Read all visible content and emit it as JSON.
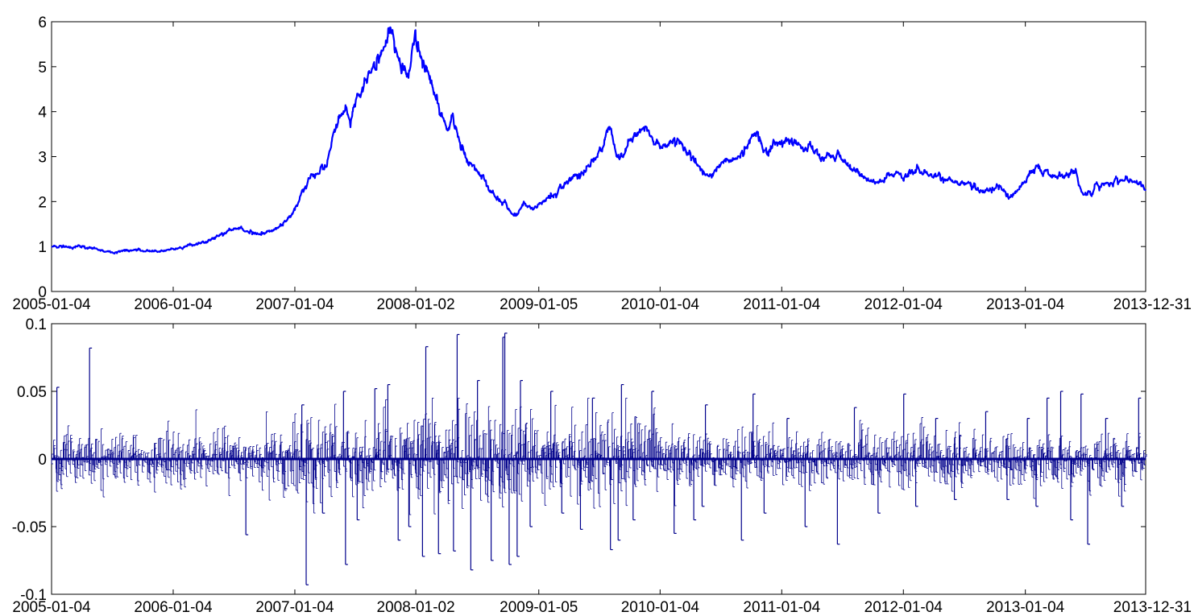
{
  "chart_data": [
    {
      "type": "line",
      "title": "",
      "xlabel": "",
      "ylabel": "",
      "ylim": [
        0,
        6
      ],
      "yticks": [
        "0",
        "1",
        "2",
        "3",
        "4",
        "5",
        "6"
      ],
      "xticks": [
        "2005-01-04",
        "2006-01-04",
        "2007-01-04",
        "2008-01-02",
        "2009-01-05",
        "2010-01-04",
        "2011-01-04",
        "2012-01-04",
        "2013-01-04",
        "2013-12-31"
      ],
      "grid": false,
      "line_color": "#0000ff",
      "series": [
        {
          "x": [
            "2005-01-04",
            "2005-02-15",
            "2005-04-01",
            "2005-05-15",
            "2005-06-10",
            "2005-07-15",
            "2005-09-01",
            "2005-10-15",
            "2005-11-20",
            "2006-01-04",
            "2006-03-01",
            "2006-04-15",
            "2006-06-01",
            "2006-06-25",
            "2006-08-01",
            "2006-09-01",
            "2006-10-15",
            "2006-11-15",
            "2006-12-15",
            "2007-01-04",
            "2007-01-25",
            "2007-02-15",
            "2007-03-15",
            "2007-04-10",
            "2007-05-01",
            "2007-05-20",
            "2007-06-05",
            "2007-06-20",
            "2007-07-10",
            "2007-07-25",
            "2007-08-15",
            "2007-09-10",
            "2007-10-01",
            "2007-10-16",
            "2007-11-05",
            "2007-11-25",
            "2007-12-10",
            "2008-01-02",
            "2008-01-14",
            "2008-02-01",
            "2008-02-25",
            "2008-03-15",
            "2008-04-05",
            "2008-04-22",
            "2008-05-10",
            "2008-06-01",
            "2008-06-20",
            "2008-07-15",
            "2008-08-10",
            "2008-09-01",
            "2008-09-25",
            "2008-10-15",
            "2008-10-28",
            "2008-11-20",
            "2008-12-15",
            "2009-01-05",
            "2009-02-15",
            "2009-03-10",
            "2009-04-15",
            "2009-05-20",
            "2009-06-20",
            "2009-07-20",
            "2009-08-04",
            "2009-08-20",
            "2009-09-05",
            "2009-09-25",
            "2009-10-15",
            "2009-11-10",
            "2009-11-25",
            "2009-12-15",
            "2010-01-04",
            "2010-02-05",
            "2010-03-05",
            "2010-04-15",
            "2010-05-10",
            "2010-06-05",
            "2010-07-05",
            "2010-08-01",
            "2010-08-25",
            "2010-09-20",
            "2010-10-20",
            "2010-11-08",
            "2010-11-25",
            "2010-12-15",
            "2011-01-04",
            "2011-02-10",
            "2011-03-10",
            "2011-04-15",
            "2011-05-10",
            "2011-06-20",
            "2011-07-20",
            "2011-08-15",
            "2011-09-15",
            "2011-10-20",
            "2011-11-15",
            "2011-12-20",
            "2012-01-04",
            "2012-02-15",
            "2012-03-15",
            "2012-05-01",
            "2012-06-15",
            "2012-08-01",
            "2012-09-15",
            "2012-10-20",
            "2012-11-25",
            "2013-01-04",
            "2013-02-05",
            "2013-03-05",
            "2013-04-05",
            "2013-05-10",
            "2013-06-05",
            "2013-06-25",
            "2013-07-25",
            "2013-08-25",
            "2013-09-25",
            "2013-10-25",
            "2013-11-25",
            "2013-12-31"
          ],
          "values": [
            1.0,
            0.98,
            1.0,
            0.95,
            0.9,
            0.86,
            0.92,
            0.9,
            0.88,
            0.95,
            1.02,
            1.1,
            1.3,
            1.4,
            1.38,
            1.28,
            1.32,
            1.42,
            1.6,
            1.82,
            2.2,
            2.5,
            2.65,
            2.85,
            3.5,
            3.9,
            4.1,
            3.75,
            4.2,
            4.5,
            4.75,
            5.2,
            5.5,
            5.88,
            5.3,
            5.0,
            4.85,
            5.7,
            5.3,
            4.95,
            4.4,
            4.05,
            3.55,
            4.0,
            3.4,
            3.0,
            2.85,
            2.55,
            2.3,
            2.05,
            2.0,
            1.72,
            1.62,
            1.95,
            1.85,
            1.95,
            2.1,
            2.3,
            2.5,
            2.7,
            2.95,
            3.3,
            3.78,
            3.2,
            2.9,
            3.2,
            3.45,
            3.65,
            3.55,
            3.45,
            3.3,
            3.32,
            3.38,
            2.9,
            2.7,
            2.55,
            2.85,
            2.9,
            2.95,
            3.2,
            3.55,
            3.2,
            3.12,
            3.25,
            3.28,
            3.35,
            3.2,
            3.1,
            2.95,
            3.1,
            2.85,
            2.7,
            2.5,
            2.4,
            2.55,
            2.65,
            2.55,
            2.72,
            2.6,
            2.55,
            2.42,
            2.35,
            2.22,
            2.3,
            2.12,
            2.45,
            2.75,
            2.65,
            2.55,
            2.6,
            2.65,
            2.2,
            2.25,
            2.38,
            2.45,
            2.5,
            2.42,
            2.32
          ]
        }
      ]
    },
    {
      "type": "bar",
      "title": "",
      "xlabel": "",
      "ylabel": "",
      "ylim": [
        -0.1,
        0.1
      ],
      "yticks": [
        "-0.1",
        "-0.05",
        "0",
        "0.05",
        "0.1"
      ],
      "xticks": [
        "2005-01-04",
        "2006-01-04",
        "2007-01-04",
        "2008-01-02",
        "2009-01-05",
        "2010-01-04",
        "2011-01-04",
        "2012-01-04",
        "2013-01-04",
        "2013-12-31"
      ],
      "grid": false,
      "line_color": "#00008b",
      "series": [
        {
          "x": [
            "2005-01-20",
            "2005-04-28",
            "2006-08-10",
            "2006-12-05",
            "2007-01-25",
            "2007-02-07",
            "2007-03-28",
            "2007-05-30",
            "2007-06-05",
            "2007-07-10",
            "2007-09-01",
            "2007-10-10",
            "2007-11-10",
            "2007-12-12",
            "2008-01-22",
            "2008-02-01",
            "2008-03-10",
            "2008-04-24",
            "2008-05-05",
            "2008-06-15",
            "2008-07-05",
            "2008-08-15",
            "2008-09-19",
            "2008-09-25",
            "2008-10-08",
            "2008-11-01",
            "2008-11-11",
            "2008-12-10",
            "2009-02-10",
            "2009-03-15",
            "2009-05-10",
            "2009-06-15",
            "2009-08-08",
            "2009-08-31",
            "2009-09-10",
            "2009-10-15",
            "2009-12-10",
            "2010-02-15",
            "2010-04-15",
            "2010-05-10",
            "2010-05-20",
            "2010-09-05",
            "2010-10-10",
            "2010-11-12",
            "2011-01-20",
            "2011-03-15",
            "2011-06-20",
            "2011-08-10",
            "2011-10-20",
            "2012-01-05",
            "2012-02-10",
            "2012-04-10",
            "2012-06-05",
            "2012-09-07",
            "2012-11-10",
            "2013-01-10",
            "2013-02-05",
            "2013-03-10",
            "2013-04-20",
            "2013-05-20",
            "2013-06-20",
            "2013-07-10",
            "2013-09-02",
            "2013-10-20",
            "2013-12-10"
          ],
          "values": [
            0.053,
            0.082,
            -0.056,
            -0.022,
            0.04,
            -0.093,
            -0.04,
            0.05,
            -0.078,
            -0.045,
            0.052,
            0.055,
            -0.06,
            -0.05,
            -0.072,
            0.083,
            -0.07,
            -0.068,
            0.092,
            -0.082,
            0.058,
            -0.075,
            0.09,
            0.093,
            -0.078,
            -0.072,
            0.058,
            -0.05,
            0.05,
            -0.04,
            -0.052,
            0.045,
            -0.067,
            -0.06,
            0.055,
            -0.045,
            0.05,
            -0.055,
            -0.045,
            -0.035,
            0.04,
            -0.06,
            0.048,
            -0.04,
            0.03,
            -0.05,
            -0.063,
            0.038,
            -0.04,
            0.048,
            -0.035,
            0.03,
            -0.03,
            0.035,
            -0.03,
            0.03,
            -0.035,
            0.045,
            0.05,
            -0.045,
            0.048,
            -0.063,
            0.03,
            -0.035,
            0.045
          ]
        }
      ]
    }
  ]
}
